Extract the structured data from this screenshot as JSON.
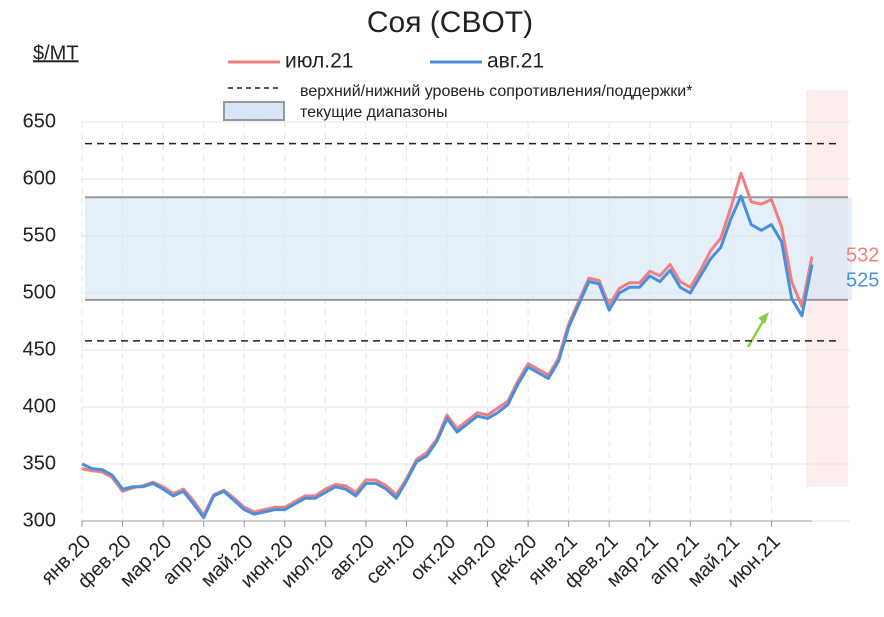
{
  "chart_data": {
    "type": "line",
    "title": "Соя (CBOT)",
    "unit_label": "$/MT",
    "categories": [
      "янв.20",
      null,
      null,
      null,
      "фев.20",
      null,
      null,
      null,
      "мар.20",
      null,
      null,
      null,
      "апр.20",
      null,
      null,
      null,
      "май.20",
      null,
      null,
      null,
      "июн.20",
      null,
      null,
      null,
      "июл.20",
      null,
      null,
      null,
      "авг.20",
      null,
      null,
      null,
      "сен.20",
      null,
      null,
      null,
      "окт.20",
      null,
      null,
      null,
      "ноя.20",
      null,
      null,
      null,
      "дек.20",
      null,
      null,
      null,
      "янв.21",
      null,
      null,
      null,
      "фев.21",
      null,
      null,
      null,
      "мар.21",
      null,
      null,
      null,
      "апр.21",
      null,
      null,
      null,
      "май.21",
      null,
      null,
      null,
      "июн.21",
      null,
      null,
      null,
      null
    ],
    "series": [
      {
        "name": "июл.21",
        "color": "#f08080",
        "values": [
          346,
          344,
          343,
          338,
          326,
          329,
          331,
          334,
          330,
          324,
          328,
          318,
          305,
          323,
          327,
          320,
          312,
          308,
          310,
          312,
          312,
          317,
          322,
          322,
          328,
          332,
          331,
          325,
          336,
          336,
          331,
          323,
          337,
          354,
          360,
          372,
          393,
          381,
          388,
          395,
          393,
          399,
          405,
          423,
          438,
          433,
          428,
          443,
          473,
          493,
          513,
          511,
          489,
          504,
          509,
          509,
          519,
          515,
          525,
          510,
          505,
          520,
          537,
          548,
          575,
          605,
          580,
          578,
          582,
          558,
          510,
          488,
          532
        ]
      },
      {
        "name": "авг.21",
        "color": "#4a8fdd",
        "values": [
          350,
          346,
          345,
          340,
          328,
          330,
          330,
          333,
          328,
          322,
          326,
          315,
          303,
          322,
          326,
          318,
          310,
          306,
          308,
          310,
          310,
          315,
          320,
          320,
          325,
          330,
          328,
          322,
          333,
          333,
          328,
          320,
          335,
          352,
          357,
          370,
          390,
          378,
          385,
          392,
          390,
          395,
          402,
          420,
          435,
          430,
          425,
          440,
          470,
          490,
          510,
          508,
          485,
          500,
          505,
          505,
          515,
          510,
          520,
          505,
          500,
          515,
          530,
          540,
          565,
          585,
          560,
          555,
          560,
          545,
          495,
          480,
          525
        ]
      }
    ],
    "levels": {
      "dashed": [
        631,
        458
      ],
      "solid": [
        584,
        494
      ]
    },
    "legend_extra": [
      "верхний/нижний уровень сопротивления/поддержки*",
      "текущие диапазоны"
    ],
    "ylim": [
      300,
      650
    ],
    "yticks": [
      300,
      350,
      400,
      450,
      500,
      550,
      600,
      650
    ],
    "grid": true
  }
}
